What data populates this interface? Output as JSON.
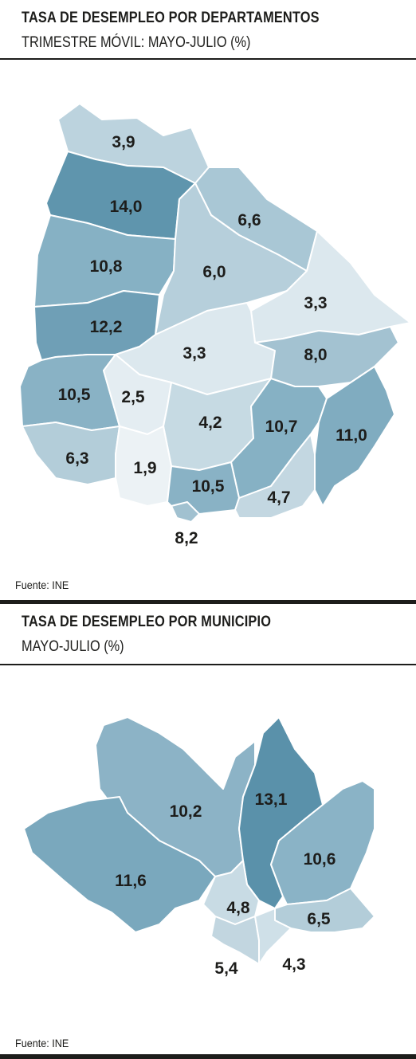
{
  "departments_map": {
    "title": "TASA DE DESEMPLEO POR DEPARTAMENTOS",
    "subtitle": "TRIMESTRE MÓVIL: MAYO-JULIO (%)",
    "source": "Fuente: INE",
    "regions": [
      {
        "label": "3,9",
        "value": 3.9,
        "color": "#bcd3de"
      },
      {
        "label": "14,0",
        "value": 14.0,
        "color": "#5f95ad"
      },
      {
        "label": "6,6",
        "value": 6.6,
        "color": "#a9c7d5"
      },
      {
        "label": "10,8",
        "value": 10.8,
        "color": "#86b1c4"
      },
      {
        "label": "6,0",
        "value": 6.0,
        "color": "#b6cfdb"
      },
      {
        "label": "3,3",
        "value": 3.3,
        "color": "#dce8ee"
      },
      {
        "label": "12,2",
        "value": 12.2,
        "color": "#6f9fb6"
      },
      {
        "label": "3,3",
        "value": 3.3,
        "color": "#dce8ee"
      },
      {
        "label": "8,0",
        "value": 8.0,
        "color": "#a3c2d1"
      },
      {
        "label": "10,5",
        "value": 10.5,
        "color": "#89b2c5"
      },
      {
        "label": "2,5",
        "value": 2.5,
        "color": "#e4edf2"
      },
      {
        "label": "4,2",
        "value": 4.2,
        "color": "#c6dae3"
      },
      {
        "label": "10,7",
        "value": 10.7,
        "color": "#86b1c4"
      },
      {
        "label": "11,0",
        "value": 11.0,
        "color": "#80acc0"
      },
      {
        "label": "6,3",
        "value": 6.3,
        "color": "#b3cdd9"
      },
      {
        "label": "1,9",
        "value": 1.9,
        "color": "#ecf2f5"
      },
      {
        "label": "10,5",
        "value": 10.5,
        "color": "#89b2c5"
      },
      {
        "label": "4,7",
        "value": 4.7,
        "color": "#c3d7e1"
      },
      {
        "label": "8,2",
        "value": 8.2,
        "color": "#a1c1d0"
      }
    ]
  },
  "municipios_map": {
    "title": "TASA DE DESEMPLEO POR MUNICIPIO",
    "subtitle": "MAYO-JULIO (%)",
    "source": "Fuente: INE",
    "regions": [
      {
        "label": "10,2",
        "value": 10.2,
        "color": "#8cb3c6"
      },
      {
        "label": "13,1",
        "value": 13.1,
        "color": "#5a91aa"
      },
      {
        "label": "11,6",
        "value": 11.6,
        "color": "#7aa8bd"
      },
      {
        "label": "10,6",
        "value": 10.6,
        "color": "#8ab3c6"
      },
      {
        "label": "4,8",
        "value": 4.8,
        "color": "#c8dbe4"
      },
      {
        "label": "6,5",
        "value": 6.5,
        "color": "#b3cdd9"
      },
      {
        "label": "5,4",
        "value": 5.4,
        "color": "#c2d6e0"
      },
      {
        "label": "4,3",
        "value": 4.3,
        "color": "#cfe0e8"
      }
    ]
  }
}
